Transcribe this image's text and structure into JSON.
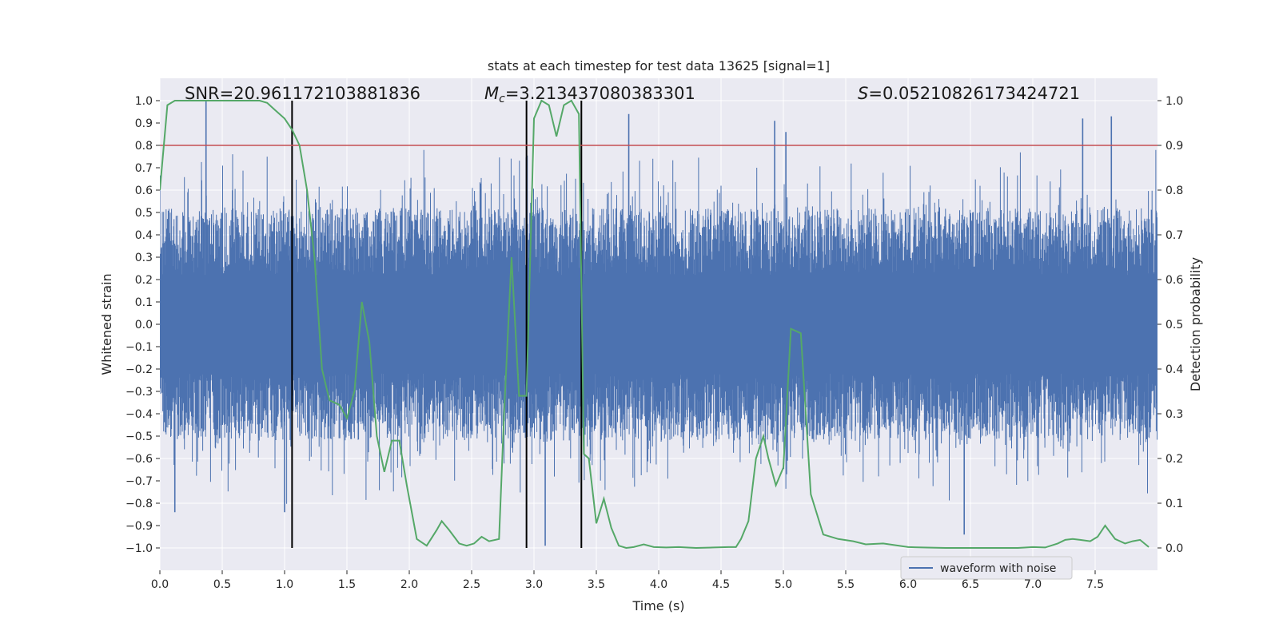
{
  "chart_data": {
    "type": "line",
    "title": "stats at each timestep for test data 13625 [signal=1]",
    "xlabel": "Time (s)",
    "ylabel_left": "Whitened strain",
    "ylabel_right": "Detection probability",
    "xlim": [
      0,
      8.0
    ],
    "ylim_left": [
      -1.1,
      1.1
    ],
    "ylim_right": [
      -0.05,
      1.05
    ],
    "x_ticks": [
      "0.0",
      "0.5",
      "1.0",
      "1.5",
      "2.0",
      "2.5",
      "3.0",
      "3.5",
      "4.0",
      "4.5",
      "5.0",
      "5.5",
      "6.0",
      "6.5",
      "7.0",
      "7.5"
    ],
    "x_tick_values": [
      0,
      0.5,
      1.0,
      1.5,
      2.0,
      2.5,
      3.0,
      3.5,
      4.0,
      4.5,
      5.0,
      5.5,
      6.0,
      6.5,
      7.0,
      7.5
    ],
    "y_left_ticks": [
      "1.0",
      "0.9",
      "0.8",
      "0.7",
      "0.6",
      "0.5",
      "0.4",
      "0.3",
      "0.2",
      "0.1",
      "0.0",
      "−0.1",
      "−0.2",
      "−0.3",
      "−0.4",
      "−0.5",
      "−0.6",
      "−0.7",
      "−0.8",
      "−0.9",
      "−1.0"
    ],
    "y_left_tick_values": [
      1.0,
      0.9,
      0.8,
      0.7,
      0.6,
      0.5,
      0.4,
      0.3,
      0.2,
      0.1,
      0.0,
      -0.1,
      -0.2,
      -0.3,
      -0.4,
      -0.5,
      -0.6,
      -0.7,
      -0.8,
      -0.9,
      -1.0
    ],
    "y_right_ticks": [
      "1.0",
      "0.9",
      "0.8",
      "0.7",
      "0.6",
      "0.5",
      "0.4",
      "0.3",
      "0.2",
      "0.1",
      "0.0"
    ],
    "y_right_tick_values": [
      1.0,
      0.9,
      0.8,
      0.7,
      0.6,
      0.5,
      0.4,
      0.3,
      0.2,
      0.1,
      0.0
    ],
    "annotations": {
      "snr": "SNR=20.961172103881836",
      "mc_symbol": "M",
      "mc_sub": "c",
      "mc_value": "=3.213437080383301",
      "s_symbol": "S",
      "s_value": "=0.05210826173424721"
    },
    "legend": {
      "label": "waveform with noise",
      "location": "lower-right"
    },
    "threshold": {
      "value": 0.9,
      "axis": "right",
      "color": "#c44e52"
    },
    "vertical_markers": [
      1.06,
      2.94,
      3.38
    ],
    "vertical_marker_range": [
      0.0,
      1.0
    ],
    "waveform": {
      "name": "waveform with noise",
      "color": "#4c72b0",
      "description": "dense noisy whitened strain, roughly in [-0.6, 0.6] with spikes to ±1.0",
      "core_band": [
        -0.22,
        0.22
      ],
      "spikes": [
        {
          "x": 0.37,
          "y": 1.0
        },
        {
          "x": 0.12,
          "y": -0.84
        },
        {
          "x": 1.0,
          "y": -0.84
        },
        {
          "x": 3.09,
          "y": -0.99
        },
        {
          "x": 3.76,
          "y": 0.94
        },
        {
          "x": 4.93,
          "y": 0.91
        },
        {
          "x": 5.02,
          "y": 0.86
        },
        {
          "x": 6.45,
          "y": -0.94
        },
        {
          "x": 7.4,
          "y": 0.92
        },
        {
          "x": 7.63,
          "y": 0.93
        }
      ],
      "seed": 13625
    },
    "series": [
      {
        "name": "detection probability",
        "axis": "right",
        "color": "#55a868",
        "x": [
          0.0,
          0.06,
          0.12,
          0.2,
          0.3,
          0.4,
          0.5,
          0.6,
          0.7,
          0.8,
          0.86,
          0.92,
          1.0,
          1.06,
          1.12,
          1.18,
          1.24,
          1.3,
          1.36,
          1.44,
          1.5,
          1.56,
          1.62,
          1.68,
          1.74,
          1.8,
          1.86,
          1.92,
          1.98,
          2.06,
          2.14,
          2.22,
          2.26,
          2.32,
          2.4,
          2.46,
          2.52,
          2.58,
          2.64,
          2.72,
          2.76,
          2.82,
          2.88,
          2.94,
          3.0,
          3.06,
          3.12,
          3.18,
          3.24,
          3.3,
          3.36,
          3.4,
          3.44,
          3.5,
          3.56,
          3.62,
          3.68,
          3.74,
          3.8,
          3.88,
          3.96,
          4.06,
          4.16,
          4.3,
          4.44,
          4.56,
          4.62,
          4.66,
          4.72,
          4.78,
          4.84,
          4.88,
          4.94,
          5.0,
          5.06,
          5.14,
          5.22,
          5.32,
          5.44,
          5.56,
          5.66,
          5.8,
          6.0,
          6.3,
          6.6,
          6.88,
          7.0,
          7.1,
          7.2,
          7.26,
          7.32,
          7.38,
          7.46,
          7.52,
          7.58,
          7.66,
          7.74,
          7.8,
          7.86,
          7.93
        ],
        "y": [
          0.8,
          0.99,
          1.0,
          1.0,
          1.0,
          1.0,
          1.0,
          1.0,
          1.0,
          1.0,
          0.995,
          0.98,
          0.96,
          0.935,
          0.9,
          0.8,
          0.65,
          0.4,
          0.33,
          0.32,
          0.29,
          0.35,
          0.55,
          0.46,
          0.25,
          0.17,
          0.24,
          0.24,
          0.14,
          0.02,
          0.005,
          0.04,
          0.06,
          0.04,
          0.01,
          0.005,
          0.01,
          0.025,
          0.015,
          0.02,
          0.3,
          0.65,
          0.34,
          0.34,
          0.96,
          1.0,
          0.99,
          0.92,
          0.99,
          1.0,
          0.97,
          0.21,
          0.2,
          0.055,
          0.11,
          0.045,
          0.005,
          0.0,
          0.002,
          0.008,
          0.002,
          0.001,
          0.002,
          0.0,
          0.001,
          0.002,
          0.002,
          0.02,
          0.06,
          0.2,
          0.25,
          0.2,
          0.14,
          0.18,
          0.49,
          0.48,
          0.12,
          0.03,
          0.02,
          0.015,
          0.008,
          0.01,
          0.002,
          0.0,
          0.0,
          0.0,
          0.002,
          0.001,
          0.01,
          0.018,
          0.02,
          0.018,
          0.015,
          0.025,
          0.05,
          0.02,
          0.01,
          0.015,
          0.018,
          0.002
        ]
      }
    ]
  }
}
